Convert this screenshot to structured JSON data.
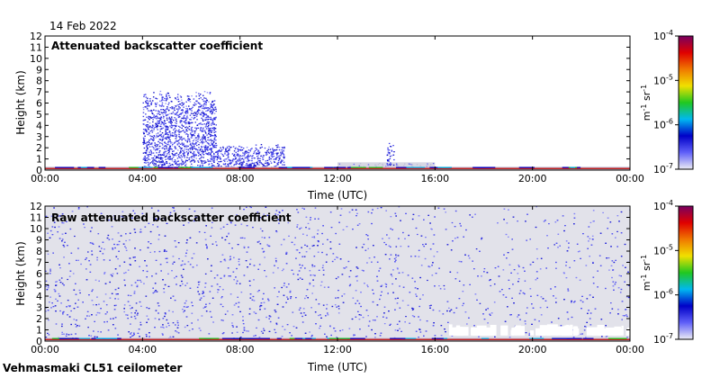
{
  "date": "14 Feb 2022",
  "footer": "Vehmasmaki CL51 ceilometer",
  "chart_data": [
    {
      "type": "heatmap",
      "title": "Attenuated backscatter coefficient",
      "xlabel": "Time (UTC)",
      "ylabel": "Height (km)",
      "x_ticks": [
        "00:00",
        "04:00",
        "08:00",
        "12:00",
        "16:00",
        "20:00",
        "00:00"
      ],
      "xlim": [
        "00:00",
        "24:00"
      ],
      "y_ticks": [
        0,
        1,
        2,
        3,
        4,
        5,
        6,
        7,
        8,
        9,
        10,
        11,
        12
      ],
      "ylim": [
        0,
        12
      ],
      "colorbar": {
        "scale": "log",
        "range": [
          1e-07,
          0.0001
        ],
        "ticks": [
          "10-7",
          "10-6",
          "10-5",
          "10-4"
        ],
        "unit": "m-1 sr-1",
        "colors": [
          "#ececf4",
          "#6060f8",
          "#0000c8",
          "#00b8f0",
          "#20c820",
          "#f0e000",
          "#f07800",
          "#e00000",
          "#780060"
        ]
      },
      "features": [
        {
          "kind": "cloud",
          "t_start": 4.0,
          "t_end": 7.0,
          "h_top": 7.5,
          "h_bottom": 0.3
        },
        {
          "kind": "cloud",
          "t_start": 7.0,
          "t_end": 9.8,
          "h_top": 2.5,
          "h_bottom": 0.3
        },
        {
          "kind": "aerosol",
          "t_start": 12.0,
          "t_end": 16.0,
          "h_top": 0.7,
          "h_bottom": 0.1
        },
        {
          "kind": "streak",
          "t_start": 14.0,
          "t_end": 14.3,
          "h_top": 2.8,
          "h_bottom": 0.3
        },
        {
          "kind": "boundary-layer",
          "t_start": 0.0,
          "t_end": 24.0,
          "h_top": 0.3,
          "h_bottom": 0.0
        }
      ]
    },
    {
      "type": "heatmap",
      "title": "Raw attenuated backscatter coefficient",
      "xlabel": "Time (UTC)",
      "ylabel": "Height (km)",
      "x_ticks": [
        "00:00",
        "04:00",
        "08:00",
        "12:00",
        "16:00",
        "20:00",
        "00:00"
      ],
      "xlim": [
        "00:00",
        "24:00"
      ],
      "y_ticks": [
        0,
        1,
        2,
        3,
        4,
        5,
        6,
        7,
        8,
        9,
        10,
        11,
        12
      ],
      "ylim": [
        0,
        12
      ],
      "colorbar": {
        "scale": "log",
        "range": [
          1e-07,
          0.0001
        ],
        "ticks": [
          "10-7",
          "10-6",
          "10-5",
          "10-4"
        ],
        "unit": "m-1 sr-1",
        "colors": [
          "#ececf4",
          "#6060f8",
          "#0000c8",
          "#00b8f0",
          "#20c820",
          "#f0e000",
          "#f07800",
          "#e00000",
          "#780060"
        ]
      },
      "features": [
        {
          "kind": "noise",
          "t_start": 0.0,
          "t_end": 24.0,
          "h_top": 12.0,
          "h_bottom": 0.3
        },
        {
          "kind": "clear-band",
          "t_start": 16.5,
          "t_end": 24.0,
          "h_top": 1.5,
          "h_bottom": 0.5
        },
        {
          "kind": "boundary-layer",
          "t_start": 0.0,
          "t_end": 24.0,
          "h_top": 0.3,
          "h_bottom": 0.0
        }
      ]
    }
  ]
}
